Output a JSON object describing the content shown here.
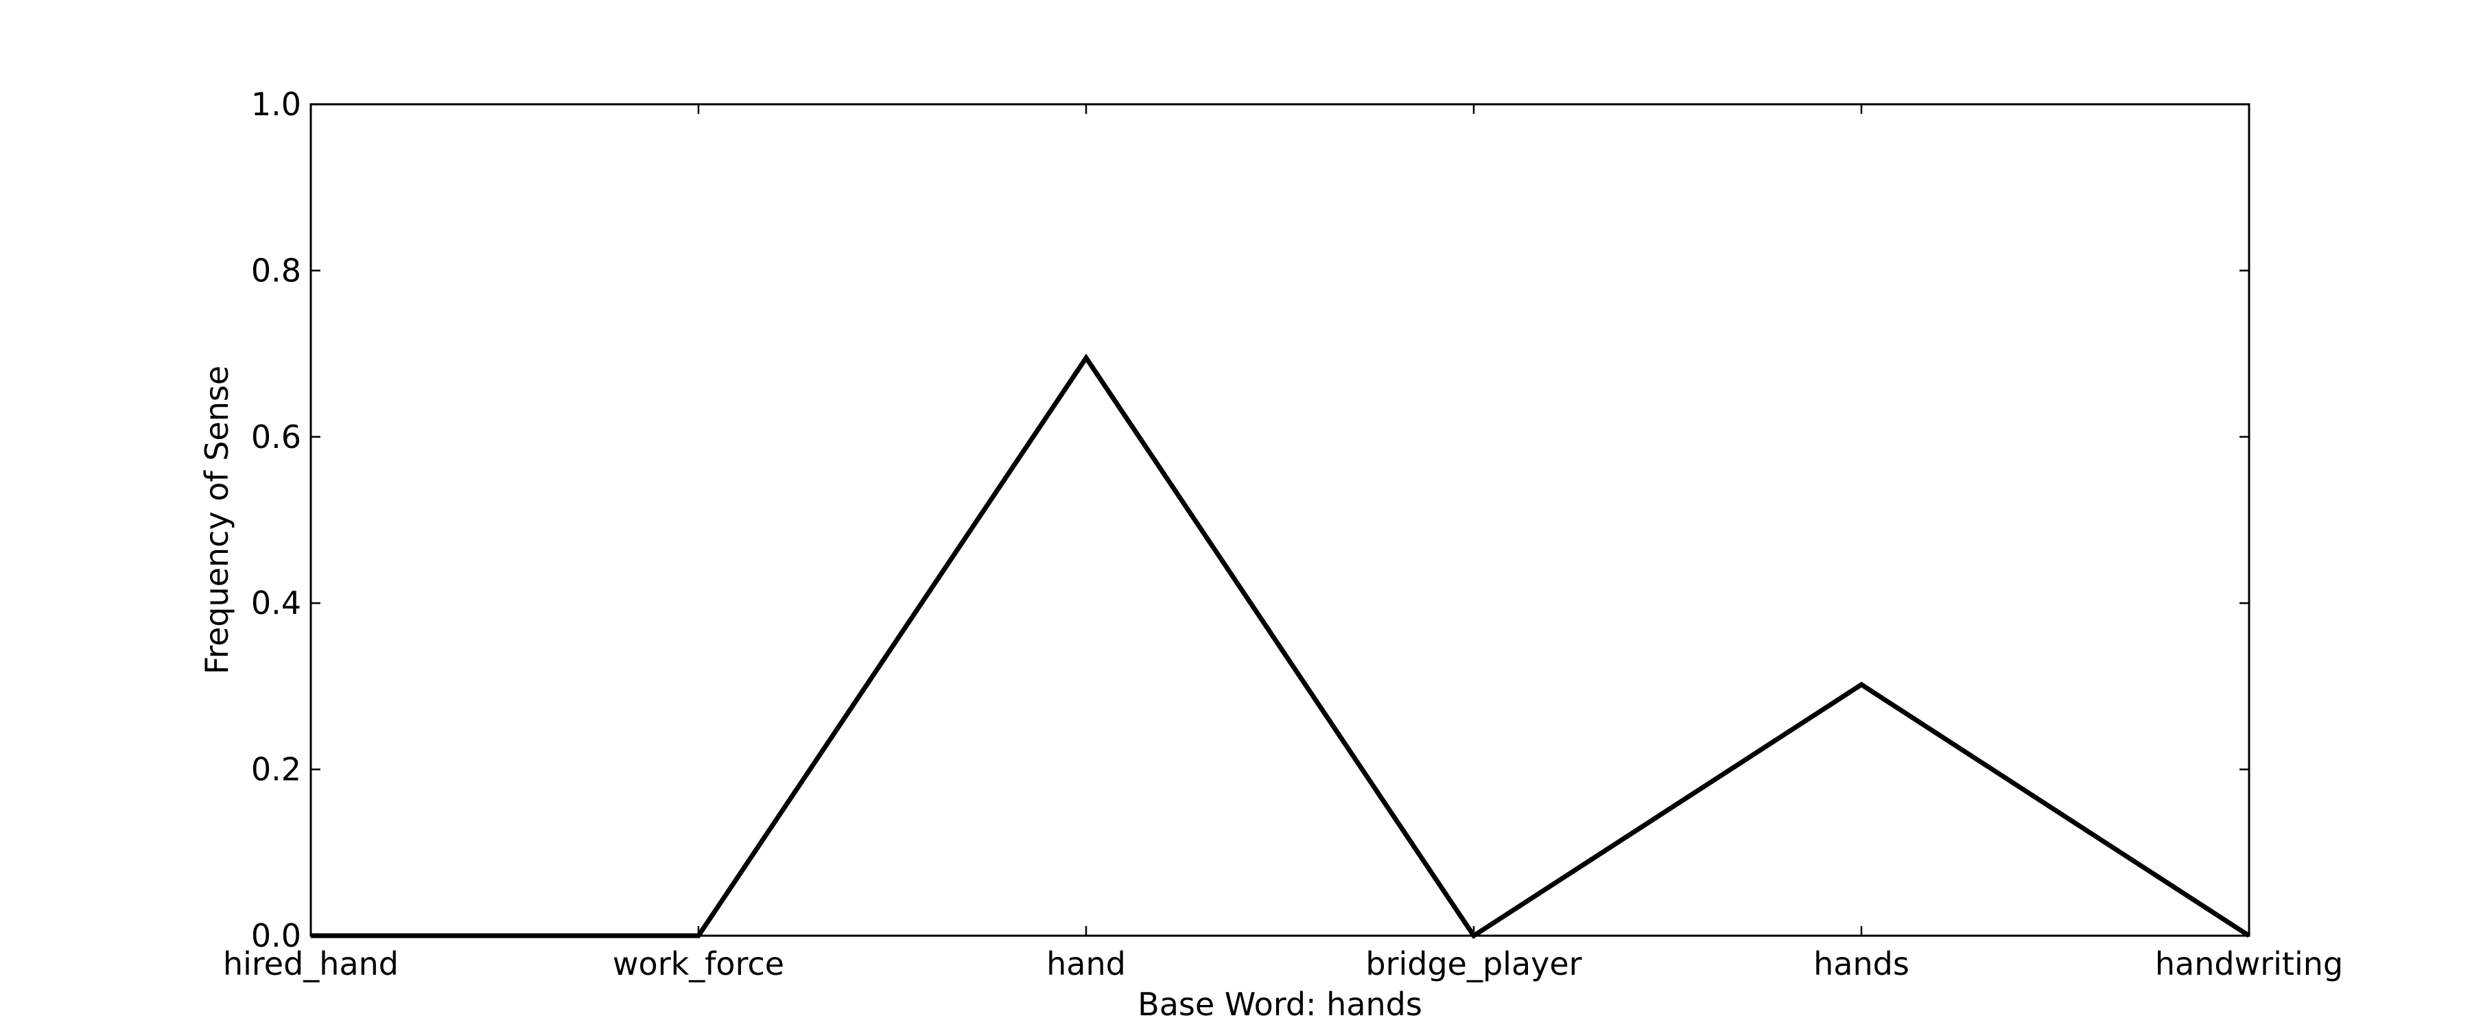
{
  "chart_data": {
    "type": "line",
    "title": "",
    "xlabel": "Base Word: hands",
    "ylabel": "Frequency of Sense",
    "categories": [
      "hired_hand",
      "work_force",
      "hand",
      "bridge_player",
      "hands",
      "handwriting"
    ],
    "series": [
      {
        "values": [
          0.0,
          0.0,
          0.695,
          0.0,
          0.302,
          0.0
        ],
        "color": "#000000"
      }
    ],
    "ylim": [
      0.0,
      1.0
    ],
    "yticks": [
      "0.0",
      "0.2",
      "0.4",
      "0.6",
      "0.8",
      "1.0"
    ],
    "grid": false,
    "legend": "none"
  }
}
